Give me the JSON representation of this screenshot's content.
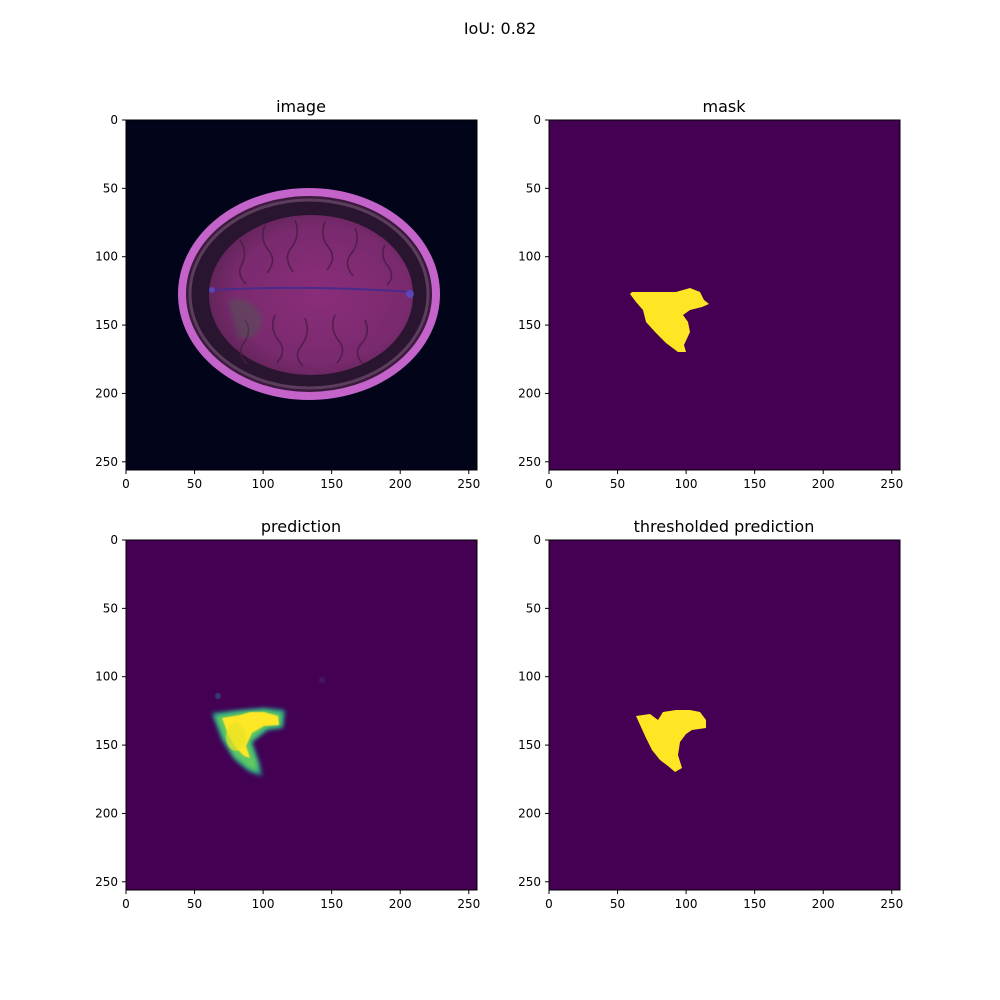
{
  "figure": {
    "suptitle": "IoU: 0.82",
    "ticks": [
      "0",
      "50",
      "100",
      "150",
      "200",
      "250"
    ],
    "tick_values": [
      0,
      50,
      100,
      150,
      200,
      250
    ],
    "axis_range": [
      0,
      256
    ],
    "colors": {
      "background": "#440154",
      "mask": "#fde725",
      "mri_bg": "#02051a"
    }
  },
  "panels": [
    {
      "title": "image"
    },
    {
      "title": "mask"
    },
    {
      "title": "prediction"
    },
    {
      "title": "thresholded prediction"
    }
  ]
}
